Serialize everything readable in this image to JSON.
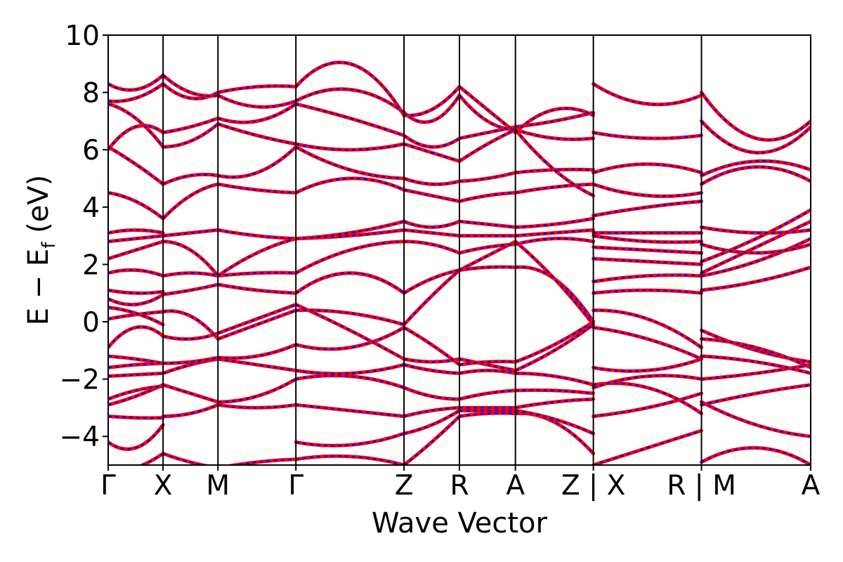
{
  "chart_data": {
    "type": "line",
    "title": "",
    "xlabel": "Wave Vector",
    "ylabel": "E − E_f (eV)",
    "ylabel_parts": {
      "main": "E − E",
      "sub": "f",
      "unit": " (eV)"
    },
    "ylim": [
      -5,
      10
    ],
    "yticks": [
      -4,
      -2,
      0,
      2,
      4,
      6,
      8,
      10
    ],
    "ytick_labels": [
      "−4",
      "−2",
      "0",
      "2",
      "4",
      "6",
      "8",
      "10"
    ],
    "xlim": [
      0,
      12.8
    ],
    "xticks": [
      {
        "x": 0.0,
        "label": "Γ"
      },
      {
        "x": 1.0,
        "label": "X"
      },
      {
        "x": 2.0,
        "label": "M"
      },
      {
        "x": 3.42,
        "label": "Γ"
      },
      {
        "x": 5.39,
        "label": "Z"
      },
      {
        "x": 6.4,
        "label": "R"
      },
      {
        "x": 7.42,
        "label": "A"
      },
      {
        "x": 8.84,
        "label": "Z | X"
      },
      {
        "x": 10.81,
        "label": "R | M"
      },
      {
        "x": 12.8,
        "label": "A"
      }
    ],
    "grid": false,
    "series_colors": {
      "primary": "#ff0000",
      "overlay": "#0000ff"
    },
    "segments": [
      {
        "name": "Γ-X",
        "range": [
          0.0,
          1.0
        ],
        "bands": [
          [
            -5.3,
            -5.1,
            -4.6
          ],
          [
            -4.2,
            -4.4,
            -3.6
          ],
          [
            -3.3,
            -3.35,
            -3.35
          ],
          [
            -2.9,
            -2.6,
            -2.2
          ],
          [
            -2.7,
            -2.4,
            -2.25
          ],
          [
            -1.9,
            -1.85,
            -1.8
          ],
          [
            -1.6,
            -1.5,
            -1.45
          ],
          [
            -1.2,
            -1.3,
            -1.45
          ],
          [
            -0.9,
            -0.2,
            -0.5
          ],
          [
            0.1,
            0.25,
            0.35
          ],
          [
            0.5,
            0.3,
            -0.1
          ],
          [
            0.8,
            0.6,
            0.95
          ],
          [
            1.1,
            1.0,
            1.05
          ],
          [
            1.7,
            1.8,
            1.6
          ],
          [
            2.2,
            2.5,
            2.8
          ],
          [
            2.8,
            2.9,
            3.0
          ],
          [
            3.1,
            3.2,
            3.1
          ],
          [
            4.5,
            4.2,
            3.6
          ],
          [
            6.1,
            5.5,
            4.8
          ],
          [
            6.0,
            6.8,
            6.6
          ],
          [
            7.6,
            7.1,
            6.1
          ],
          [
            7.7,
            7.8,
            8.3
          ],
          [
            8.3,
            8.1,
            8.6
          ]
        ]
      },
      {
        "name": "X-M",
        "range": [
          1.0,
          2.0
        ],
        "bands": [
          [
            -4.6,
            -4.9,
            -5.1
          ],
          [
            -3.3,
            -3.2,
            -2.9
          ],
          [
            -2.2,
            -2.5,
            -2.8
          ],
          [
            -1.8,
            -1.5,
            -1.3
          ],
          [
            -1.45,
            -1.4,
            -1.25
          ],
          [
            -0.5,
            -0.6,
            -0.4
          ],
          [
            0.35,
            0.2,
            -0.6
          ],
          [
            0.95,
            1.1,
            1.3
          ],
          [
            1.6,
            1.7,
            1.6
          ],
          [
            2.8,
            2.5,
            1.6
          ],
          [
            3.0,
            3.1,
            3.2
          ],
          [
            3.6,
            4.4,
            4.8
          ],
          [
            4.8,
            5.1,
            5.1
          ],
          [
            6.1,
            6.3,
            6.9
          ],
          [
            6.6,
            6.8,
            7.1
          ],
          [
            8.3,
            7.8,
            8.0
          ],
          [
            8.6,
            8.0,
            7.9
          ]
        ]
      },
      {
        "name": "M-Γ",
        "range": [
          2.0,
          3.42
        ],
        "bands": [
          [
            -5.1,
            -4.9,
            -4.8
          ],
          [
            -2.9,
            -3.0,
            -2.9
          ],
          [
            -2.8,
            -2.6,
            -2.0
          ],
          [
            -1.3,
            -1.5,
            -1.7
          ],
          [
            -1.25,
            -1.2,
            -0.8
          ],
          [
            -0.4,
            0.1,
            0.6
          ],
          [
            -0.6,
            -0.1,
            0.4
          ],
          [
            1.3,
            1.1,
            1.0
          ],
          [
            1.6,
            1.7,
            1.7
          ],
          [
            1.6,
            2.4,
            2.9
          ],
          [
            3.2,
            3.0,
            2.9
          ],
          [
            4.8,
            4.6,
            4.5
          ],
          [
            5.1,
            5.2,
            6.1
          ],
          [
            6.9,
            6.5,
            6.2
          ],
          [
            7.1,
            7.0,
            7.6
          ],
          [
            8.0,
            8.2,
            8.2
          ],
          [
            7.9,
            7.5,
            7.7
          ]
        ]
      },
      {
        "name": "Γ-Z",
        "range": [
          3.42,
          5.39
        ],
        "bands": [
          [
            -4.8,
            -4.7,
            -5.0
          ],
          [
            -4.2,
            -4.3,
            -3.9
          ],
          [
            -2.9,
            -3.1,
            -3.3
          ],
          [
            -2.0,
            -1.9,
            -2.3
          ],
          [
            -1.7,
            -1.8,
            -1.5
          ],
          [
            -0.8,
            -0.9,
            -0.2
          ],
          [
            0.6,
            -0.3,
            -1.3
          ],
          [
            0.4,
            0.3,
            -0.1
          ],
          [
            1.0,
            1.7,
            1.0
          ],
          [
            1.7,
            2.5,
            2.8
          ],
          [
            2.9,
            3.0,
            3.2
          ],
          [
            2.9,
            3.1,
            3.5
          ],
          [
            4.5,
            5.0,
            4.6
          ],
          [
            6.1,
            5.3,
            5.0
          ],
          [
            6.2,
            6.0,
            6.2
          ],
          [
            7.6,
            7.1,
            6.5
          ],
          [
            8.2,
            9.0,
            7.2
          ],
          [
            7.7,
            8.1,
            7.3
          ]
        ]
      },
      {
        "name": "Z-R",
        "range": [
          5.39,
          6.4
        ],
        "bands": [
          [
            -5.0,
            -4.2,
            -3.3
          ],
          [
            -3.9,
            -3.6,
            -3.1
          ],
          [
            -3.3,
            -3.1,
            -3.0
          ],
          [
            -2.3,
            -2.6,
            -2.7
          ],
          [
            -1.5,
            -1.7,
            -1.8
          ],
          [
            -1.3,
            -1.4,
            -1.3
          ],
          [
            -0.2,
            -0.8,
            -1.5
          ],
          [
            -0.1,
            0.9,
            1.8
          ],
          [
            1.0,
            1.5,
            1.8
          ],
          [
            2.8,
            2.7,
            2.4
          ],
          [
            3.2,
            3.1,
            3.0
          ],
          [
            3.5,
            3.3,
            3.5
          ],
          [
            4.6,
            4.4,
            4.2
          ],
          [
            5.0,
            4.8,
            4.9
          ],
          [
            6.2,
            5.9,
            5.6
          ],
          [
            6.5,
            6.1,
            6.4
          ],
          [
            7.2,
            7.4,
            8.2
          ],
          [
            7.3,
            7.0,
            7.9
          ]
        ]
      },
      {
        "name": "R-A",
        "range": [
          6.4,
          7.42
        ],
        "bands": [
          [
            -3.3,
            -3.2,
            -3.2
          ],
          [
            -3.1,
            -3.1,
            -3.1
          ],
          [
            -3.0,
            -3.0,
            -3.0
          ],
          [
            -2.7,
            -2.5,
            -2.4
          ],
          [
            -1.8,
            -1.7,
            -1.8
          ],
          [
            -1.3,
            -1.5,
            -1.7
          ],
          [
            -1.5,
            -1.4,
            -1.4
          ],
          [
            1.8,
            1.9,
            1.9
          ],
          [
            1.8,
            2.3,
            2.8
          ],
          [
            2.4,
            2.6,
            2.7
          ],
          [
            3.0,
            3.0,
            3.0
          ],
          [
            3.5,
            3.4,
            3.3
          ],
          [
            4.2,
            4.4,
            4.5
          ],
          [
            4.9,
            5.0,
            5.2
          ],
          [
            5.6,
            6.2,
            6.7
          ],
          [
            6.4,
            6.6,
            6.8
          ],
          [
            8.2,
            7.4,
            6.6
          ],
          [
            7.9,
            7.0,
            6.7
          ]
        ]
      },
      {
        "name": "A-Z",
        "range": [
          7.42,
          8.84
        ],
        "bands": [
          [
            -3.2,
            -3.5,
            -4.6
          ],
          [
            -3.1,
            -3.4,
            -3.9
          ],
          [
            -3.0,
            -2.8,
            -2.7
          ],
          [
            -2.4,
            -2.4,
            -2.5
          ],
          [
            -1.8,
            -1.9,
            -2.2
          ],
          [
            -1.7,
            -1.0,
            -0.1
          ],
          [
            -1.4,
            -0.8,
            0.0
          ],
          [
            1.9,
            1.5,
            0.0
          ],
          [
            2.8,
            1.5,
            -0.1
          ],
          [
            2.7,
            2.9,
            2.8
          ],
          [
            3.0,
            3.1,
            3.2
          ],
          [
            3.3,
            3.4,
            3.6
          ],
          [
            4.5,
            4.7,
            4.8
          ],
          [
            5.2,
            5.3,
            5.3
          ],
          [
            6.7,
            6.4,
            6.4
          ],
          [
            6.8,
            7.0,
            7.3
          ],
          [
            6.6,
            7.4,
            7.2
          ],
          [
            6.7,
            5.3,
            4.4
          ]
        ]
      },
      {
        "name": "X-R",
        "range": [
          8.84,
          10.81
        ],
        "bands": [
          [
            -5.0,
            -4.4,
            -3.8
          ],
          [
            -3.3,
            -3.0,
            -2.5
          ],
          [
            -2.2,
            -2.3,
            -3.2
          ],
          [
            -2.3,
            -1.9,
            -2.0
          ],
          [
            -1.6,
            -1.7,
            -1.3
          ],
          [
            -0.2,
            -0.6,
            -1.3
          ],
          [
            0.4,
            0.1,
            -0.9
          ],
          [
            1.0,
            1.1,
            1.0
          ],
          [
            1.4,
            1.6,
            1.6
          ],
          [
            2.2,
            2.1,
            2.0
          ],
          [
            2.6,
            2.5,
            2.4
          ],
          [
            3.0,
            2.8,
            2.8
          ],
          [
            3.1,
            3.1,
            3.1
          ],
          [
            3.7,
            4.0,
            4.2
          ],
          [
            4.8,
            4.4,
            4.5
          ],
          [
            5.2,
            5.5,
            5.2
          ],
          [
            6.6,
            6.4,
            6.5
          ],
          [
            8.3,
            7.6,
            7.9
          ]
        ]
      },
      {
        "name": "M-A",
        "range": [
          10.81,
          12.8
        ],
        "bands": [
          [
            -4.9,
            -4.4,
            -5.0
          ],
          [
            -2.8,
            -3.6,
            -4.0
          ],
          [
            -2.9,
            -2.5,
            -2.2
          ],
          [
            -2.0,
            -1.8,
            -1.5
          ],
          [
            -1.2,
            -1.4,
            -1.8
          ],
          [
            -0.3,
            -1.0,
            -1.4
          ],
          [
            -0.6,
            -0.9,
            -1.6
          ],
          [
            1.1,
            1.4,
            1.9
          ],
          [
            1.6,
            2.1,
            2.9
          ],
          [
            1.7,
            2.6,
            3.5
          ],
          [
            2.1,
            2.9,
            3.9
          ],
          [
            2.7,
            2.4,
            2.7
          ],
          [
            3.3,
            3.1,
            3.2
          ],
          [
            4.8,
            5.4,
            4.9
          ],
          [
            5.1,
            5.6,
            5.3
          ],
          [
            7.0,
            5.9,
            6.8
          ],
          [
            8.0,
            6.4,
            7.0
          ]
        ]
      }
    ]
  }
}
